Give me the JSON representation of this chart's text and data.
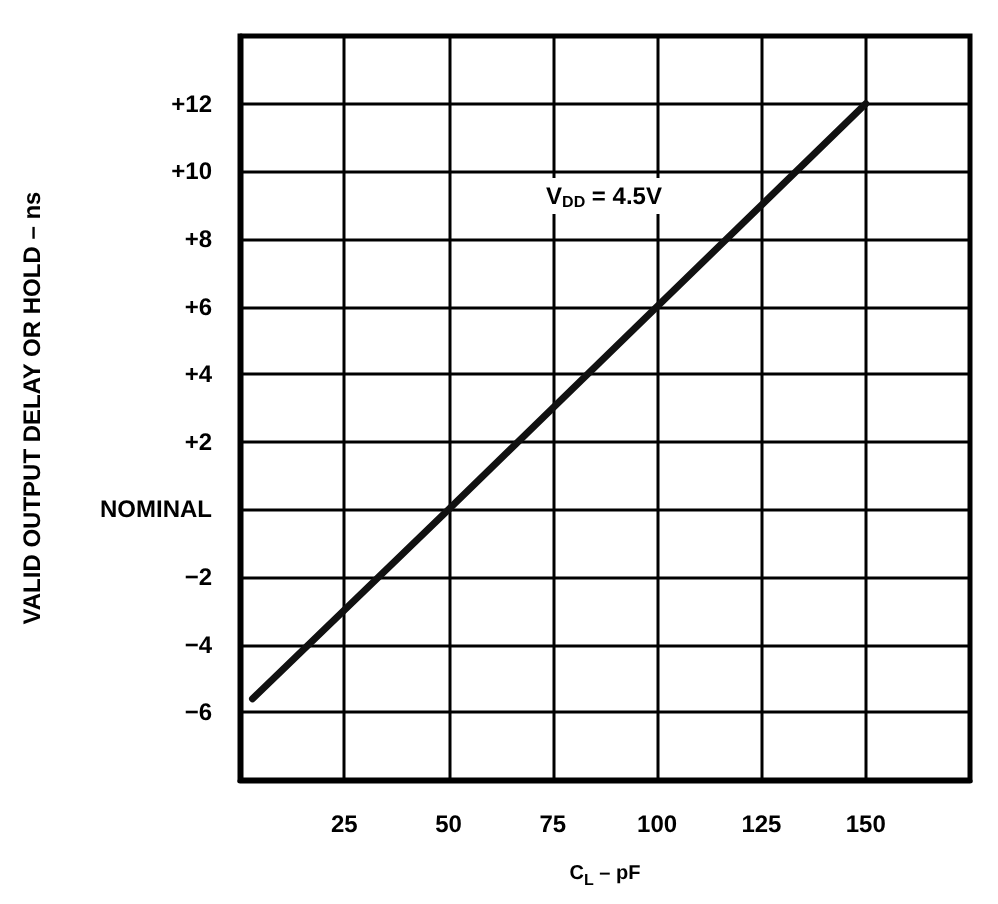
{
  "chart_data": {
    "type": "line",
    "xlabel": "C$_{L}$ – pF",
    "ylabel": "VALID OUTPUT DELAY OR HOLD – ns",
    "x": [
      3,
      50,
      100,
      150
    ],
    "series": [
      {
        "color": "#111111",
        "values": [
          -5.6,
          0,
          6,
          12
        ]
      }
    ],
    "xlim": [
      0,
      175
    ],
    "xticks": [
      25,
      50,
      75,
      100,
      125,
      150
    ],
    "ylim": [
      -8,
      14
    ],
    "yticks": [
      {
        "value": -6,
        "label": "−6"
      },
      {
        "value": -4,
        "label": "−4"
      },
      {
        "value": -2,
        "label": "−2"
      },
      {
        "value": 0,
        "label": "NOMINAL"
      },
      {
        "value": 2,
        "label": "+2"
      },
      {
        "value": 4,
        "label": "+4"
      },
      {
        "value": 6,
        "label": "+6"
      },
      {
        "value": 8,
        "label": "+8"
      },
      {
        "value": 10,
        "label": "+10"
      },
      {
        "value": 12,
        "label": "+12"
      }
    ],
    "annotations": [
      "V$_{DD}$ = 4.5V"
    ],
    "grid": true,
    "marker": "none",
    "line_style": "solid"
  }
}
